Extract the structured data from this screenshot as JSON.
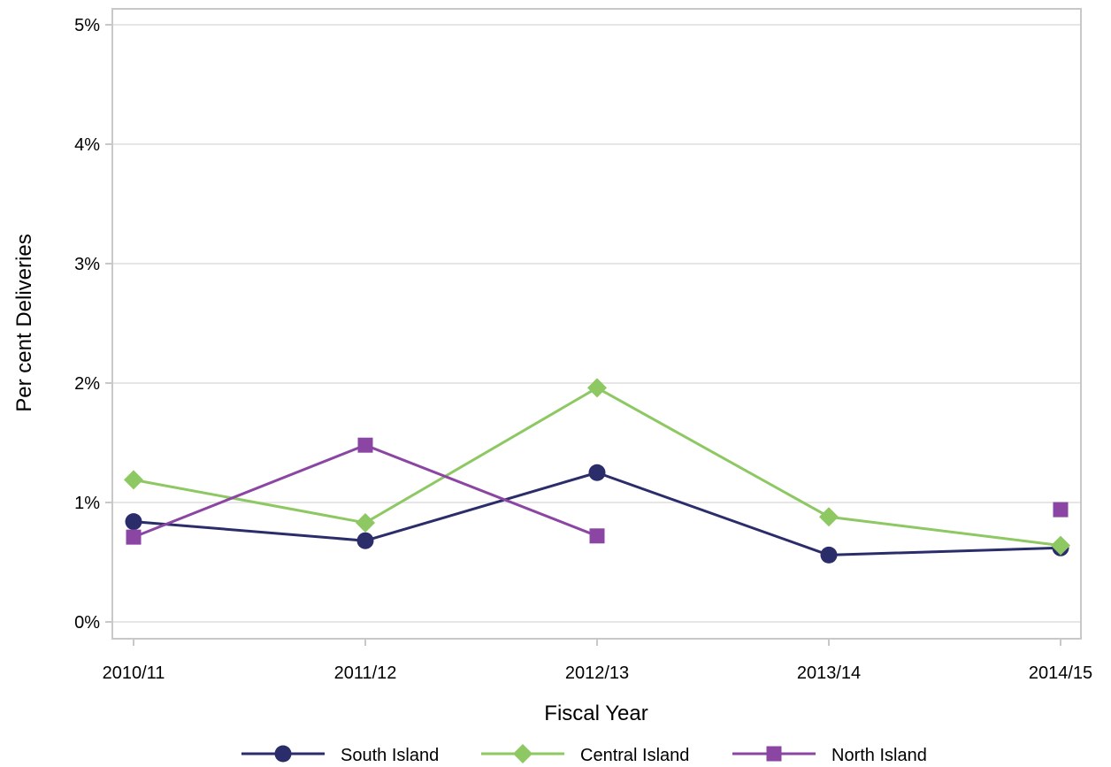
{
  "chart_data": {
    "type": "line",
    "title": "",
    "xlabel": "Fiscal Year",
    "ylabel": "Per cent Deliveries",
    "categories": [
      "2010/11",
      "2011/12",
      "2012/13",
      "2013/14",
      "2014/15"
    ],
    "ylim": [
      0,
      5
    ],
    "yticks": [
      0,
      1,
      2,
      3,
      4,
      5
    ],
    "ytick_labels": [
      "0%",
      "1%",
      "2%",
      "3%",
      "4%",
      "5%"
    ],
    "grid": "horizontal",
    "legend_position": "bottom",
    "series": [
      {
        "name": "South Island",
        "marker": "circle",
        "color": "#2b2d6b",
        "values": [
          0.84,
          0.68,
          1.25,
          0.56,
          0.62
        ]
      },
      {
        "name": "Central Island",
        "marker": "diamond",
        "color": "#8dc862",
        "values": [
          1.19,
          0.83,
          1.96,
          0.88,
          0.64
        ]
      },
      {
        "name": "North Island",
        "marker": "square",
        "color": "#8b46a4",
        "values": [
          0.71,
          1.48,
          0.72,
          null,
          0.94
        ]
      }
    ]
  }
}
